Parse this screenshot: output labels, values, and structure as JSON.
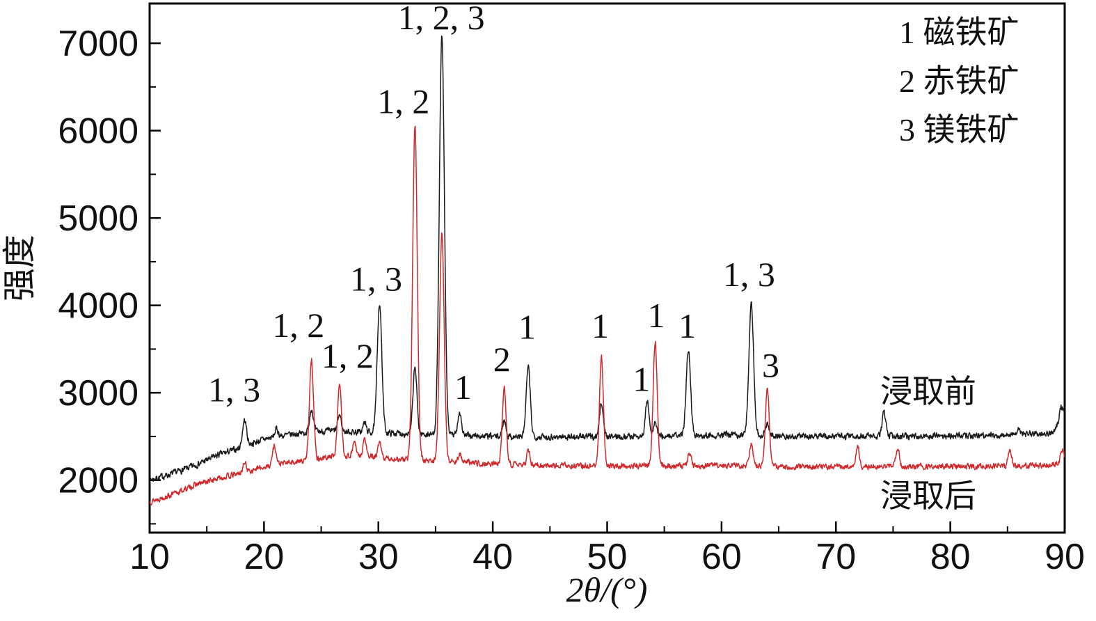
{
  "chart_data": {
    "type": "line",
    "title": "",
    "xlabel": "2θ/(°)",
    "ylabel": "强度",
    "xlim": [
      10,
      90
    ],
    "ylim": [
      1400,
      7455
    ],
    "xticks": [
      10,
      20,
      30,
      40,
      50,
      60,
      70,
      80,
      90
    ],
    "yticks": [
      2000,
      3000,
      4000,
      5000,
      6000,
      7000
    ],
    "x_minor_step": 5,
    "y_minor_step": 500,
    "grid": false,
    "legend_position": "top-right-inside",
    "legend": {
      "lines": [
        "1 磁铁矿",
        "2 赤铁矿",
        "3 镁铁矿"
      ]
    },
    "series": [
      {
        "name": "浸取前",
        "color": "#1a1a1a",
        "noise": 30,
        "seed": 7,
        "baseline": [
          [
            10,
            2000
          ],
          [
            12,
            2075
          ],
          [
            14,
            2170
          ],
          [
            16,
            2290
          ],
          [
            18,
            2370
          ],
          [
            19,
            2420
          ],
          [
            20,
            2470
          ],
          [
            22,
            2515
          ],
          [
            24,
            2550
          ],
          [
            26,
            2565
          ],
          [
            28,
            2550
          ],
          [
            30,
            2545
          ],
          [
            33,
            2530
          ],
          [
            36,
            2515
          ],
          [
            40,
            2500
          ],
          [
            45,
            2495
          ],
          [
            50,
            2500
          ],
          [
            55,
            2505
          ],
          [
            58,
            2515
          ],
          [
            62,
            2520
          ],
          [
            66,
            2505
          ],
          [
            70,
            2500
          ],
          [
            75,
            2505
          ],
          [
            80,
            2510
          ],
          [
            85,
            2515
          ],
          [
            89,
            2540
          ],
          [
            90,
            2700
          ]
        ],
        "peaks": [
          [
            18.3,
            300,
            0.18
          ],
          [
            21.1,
            90,
            0.15
          ],
          [
            24.15,
            270,
            0.16
          ],
          [
            26.6,
            190,
            0.15
          ],
          [
            28.8,
            110,
            0.14
          ],
          [
            30.1,
            1480,
            0.2
          ],
          [
            33.2,
            760,
            0.17
          ],
          [
            35.55,
            4560,
            0.22
          ],
          [
            37.1,
            270,
            0.16
          ],
          [
            41.0,
            190,
            0.15
          ],
          [
            43.1,
            790,
            0.18
          ],
          [
            49.5,
            390,
            0.16
          ],
          [
            53.5,
            400,
            0.16
          ],
          [
            54.2,
            160,
            0.14
          ],
          [
            57.1,
            990,
            0.19
          ],
          [
            62.6,
            1530,
            0.2
          ],
          [
            64.0,
            140,
            0.14
          ],
          [
            74.2,
            260,
            0.16
          ],
          [
            86.0,
            90,
            0.15
          ],
          [
            89.7,
            180,
            0.2
          ]
        ]
      },
      {
        "name": "浸取后",
        "color": "#d0282a",
        "noise": 26,
        "seed": 13,
        "baseline": [
          [
            10,
            1755
          ],
          [
            12,
            1835
          ],
          [
            14,
            1945
          ],
          [
            16,
            2020
          ],
          [
            18,
            2080
          ],
          [
            20,
            2150
          ],
          [
            22,
            2200
          ],
          [
            24,
            2225
          ],
          [
            26,
            2270
          ],
          [
            27.5,
            2280
          ],
          [
            29,
            2270
          ],
          [
            31,
            2245
          ],
          [
            33,
            2230
          ],
          [
            36,
            2215
          ],
          [
            40,
            2185
          ],
          [
            45,
            2170
          ],
          [
            50,
            2160
          ],
          [
            55,
            2165
          ],
          [
            60,
            2170
          ],
          [
            65,
            2155
          ],
          [
            70,
            2150
          ],
          [
            75,
            2155
          ],
          [
            80,
            2160
          ],
          [
            85,
            2160
          ],
          [
            89,
            2170
          ],
          [
            90,
            2230
          ]
        ],
        "peaks": [
          [
            18.3,
            110,
            0.15
          ],
          [
            20.9,
            220,
            0.16
          ],
          [
            24.15,
            1150,
            0.18
          ],
          [
            26.6,
            830,
            0.17
          ],
          [
            27.9,
            160,
            0.14
          ],
          [
            28.8,
            200,
            0.14
          ],
          [
            30.1,
            160,
            0.15
          ],
          [
            33.2,
            3830,
            0.2
          ],
          [
            35.55,
            2590,
            0.2
          ],
          [
            37.1,
            90,
            0.14
          ],
          [
            41.0,
            880,
            0.17
          ],
          [
            43.1,
            160,
            0.14
          ],
          [
            49.5,
            1250,
            0.17
          ],
          [
            54.2,
            1420,
            0.18
          ],
          [
            57.2,
            150,
            0.14
          ],
          [
            62.6,
            260,
            0.15
          ],
          [
            64.0,
            880,
            0.17
          ],
          [
            71.9,
            230,
            0.15
          ],
          [
            75.4,
            210,
            0.15
          ],
          [
            85.2,
            190,
            0.15
          ],
          [
            89.8,
            120,
            0.15
          ]
        ]
      }
    ],
    "annotations": [
      {
        "text": "1, 3",
        "x": 17.4,
        "y": 2900
      },
      {
        "text": "1, 2",
        "x": 23.0,
        "y": 3640
      },
      {
        "text": "1, 2",
        "x": 27.3,
        "y": 3290
      },
      {
        "text": "1, 3",
        "x": 29.8,
        "y": 4170
      },
      {
        "text": "1, 2",
        "x": 32.2,
        "y": 6200
      },
      {
        "text": "1, 2, 3",
        "x": 35.5,
        "y": 7160
      },
      {
        "text": "1",
        "x": 37.4,
        "y": 2930
      },
      {
        "text": "2",
        "x": 40.8,
        "y": 3250
      },
      {
        "text": "1",
        "x": 43.0,
        "y": 3620
      },
      {
        "text": "1",
        "x": 49.4,
        "y": 3630
      },
      {
        "text": "1",
        "x": 53.0,
        "y": 3020
      },
      {
        "text": "1",
        "x": 54.3,
        "y": 3750
      },
      {
        "text": "1",
        "x": 57.0,
        "y": 3630
      },
      {
        "text": "1, 3",
        "x": 62.4,
        "y": 4220
      },
      {
        "text": "3",
        "x": 64.3,
        "y": 3180
      }
    ],
    "series_labels": [
      {
        "text": "浸取前",
        "x": 74.0,
        "y": 3040
      },
      {
        "text": "浸取后",
        "x": 74.0,
        "y": 1850
      }
    ]
  }
}
